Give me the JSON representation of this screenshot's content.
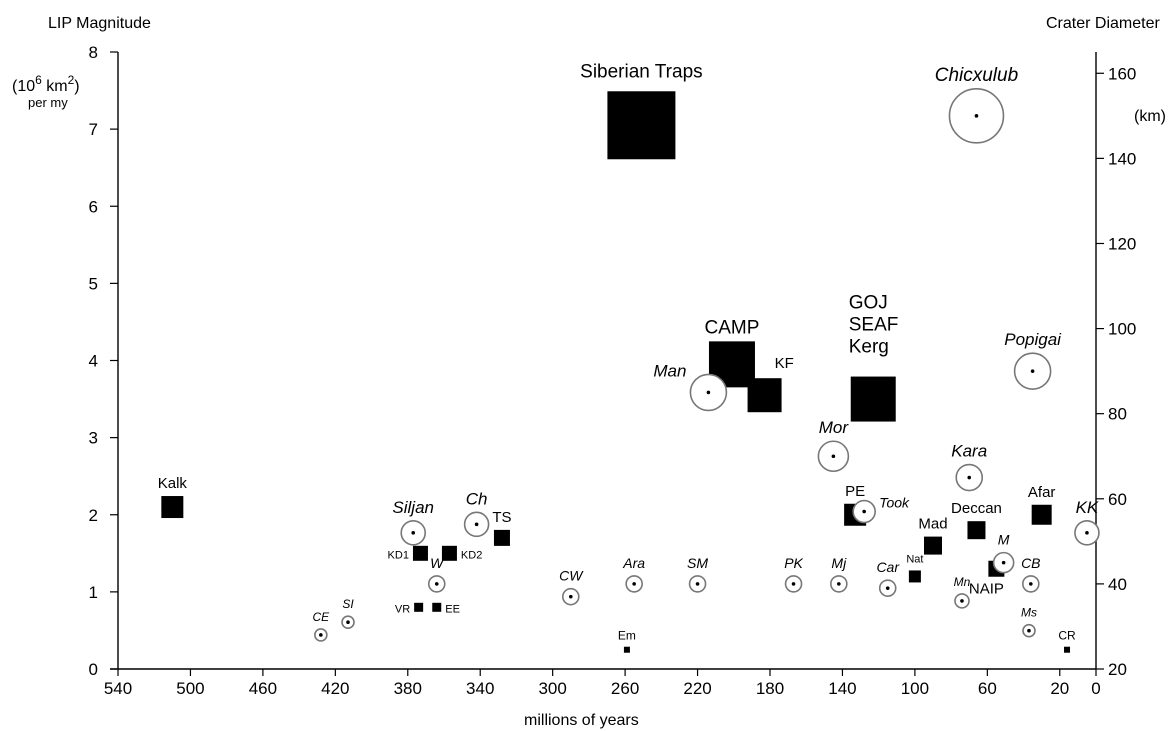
{
  "chart_data": {
    "type": "scatter",
    "xlabel": "millions of years",
    "ylabel_left": "LIP Magnitude",
    "ylabel_left_unit_lines": [
      "(10",
      "6",
      " km",
      "2",
      ")",
      "per my"
    ],
    "ylabel_right": "Crater Diameter",
    "ylabel_right_unit": "(km)",
    "xlim": [
      540,
      0
    ],
    "ylim_left": [
      0,
      8
    ],
    "ylim_right": [
      20,
      165
    ],
    "x_ticks": [
      540,
      500,
      460,
      420,
      380,
      340,
      300,
      260,
      220,
      180,
      140,
      100,
      60,
      20,
      0
    ],
    "y_left_ticks": [
      0,
      1,
      2,
      3,
      4,
      5,
      6,
      7,
      8
    ],
    "y_right_ticks": [
      20,
      40,
      60,
      80,
      100,
      120,
      140,
      160
    ],
    "series": [
      {
        "name": "LIP",
        "points": [
          {
            "label": "Siberian Traps",
            "age": 251,
            "magnitude": 7.05,
            "size": 68
          },
          {
            "label": "CAMP",
            "age": 201,
            "magnitude": 3.95,
            "size": 46
          },
          {
            "label": "KF",
            "age": 183,
            "magnitude": 3.55,
            "size": 34
          },
          {
            "label": "GOJ\nSEAF\nKerg",
            "age": 123,
            "magnitude": 3.5,
            "size": 45
          },
          {
            "label": "Kalk",
            "age": 510,
            "magnitude": 2.1,
            "size": 22
          },
          {
            "label": "KD1",
            "age": 373,
            "magnitude": 1.5,
            "size": 15
          },
          {
            "label": "KD2",
            "age": 357,
            "magnitude": 1.5,
            "size": 15
          },
          {
            "label": "TS",
            "age": 328,
            "magnitude": 1.7,
            "size": 16
          },
          {
            "label": "VR",
            "age": 374,
            "magnitude": 0.8,
            "size": 9
          },
          {
            "label": "EE",
            "age": 364,
            "magnitude": 0.8,
            "size": 9
          },
          {
            "label": "Em",
            "age": 259,
            "magnitude": 0.25,
            "size": 6
          },
          {
            "label": "PE",
            "age": 133,
            "magnitude": 2.0,
            "size": 22
          },
          {
            "label": "Mad",
            "age": 90,
            "magnitude": 1.6,
            "size": 18
          },
          {
            "label": "Deccan",
            "age": 66,
            "magnitude": 1.8,
            "size": 18
          },
          {
            "label": "Nat",
            "age": 100,
            "magnitude": 1.2,
            "size": 12
          },
          {
            "label": "NAIP",
            "age": 55,
            "magnitude": 1.3,
            "size": 16
          },
          {
            "label": "Afar",
            "age": 30,
            "magnitude": 2.0,
            "size": 20
          },
          {
            "label": "CR",
            "age": 16,
            "magnitude": 0.25,
            "size": 6
          }
        ]
      },
      {
        "name": "Impact crater",
        "points": [
          {
            "label": "Chicxulub",
            "age": 66,
            "diameter": 150,
            "r": 27
          },
          {
            "label": "Popigai",
            "age": 35,
            "diameter": 90,
            "r": 18
          },
          {
            "label": "Man",
            "age": 214,
            "diameter": 85,
            "r": 18
          },
          {
            "label": "Mor",
            "age": 145,
            "diameter": 70,
            "r": 15
          },
          {
            "label": "Kara",
            "age": 70,
            "diameter": 65,
            "r": 13
          },
          {
            "label": "Took",
            "age": 128,
            "diameter": 57,
            "r": 11
          },
          {
            "label": "Siljan",
            "age": 377,
            "diameter": 52,
            "r": 12
          },
          {
            "label": "Ch",
            "age": 342,
            "diameter": 54,
            "r": 12
          },
          {
            "label": "KK",
            "age": 5,
            "diameter": 52,
            "r": 12
          },
          {
            "label": "M",
            "age": 51,
            "diameter": 45,
            "r": 10
          },
          {
            "label": "W",
            "age": 364,
            "diameter": 40,
            "r": 8
          },
          {
            "label": "CW",
            "age": 290,
            "diameter": 37,
            "r": 8
          },
          {
            "label": "Ara",
            "age": 255,
            "diameter": 40,
            "r": 8
          },
          {
            "label": "SM",
            "age": 220,
            "diameter": 40,
            "r": 8
          },
          {
            "label": "PK",
            "age": 167,
            "diameter": 40,
            "r": 8
          },
          {
            "label": "Mj",
            "age": 142,
            "diameter": 40,
            "r": 8
          },
          {
            "label": "Car",
            "age": 115,
            "diameter": 39,
            "r": 8
          },
          {
            "label": "Mn",
            "age": 74,
            "diameter": 36,
            "r": 7
          },
          {
            "label": "CB",
            "age": 36,
            "diameter": 40,
            "r": 8
          },
          {
            "label": "SI",
            "age": 413,
            "diameter": 31,
            "r": 6
          },
          {
            "label": "CE",
            "age": 428,
            "diameter": 28,
            "r": 6
          },
          {
            "label": "Ms",
            "age": 37,
            "diameter": 29,
            "r": 6
          }
        ]
      }
    ]
  }
}
